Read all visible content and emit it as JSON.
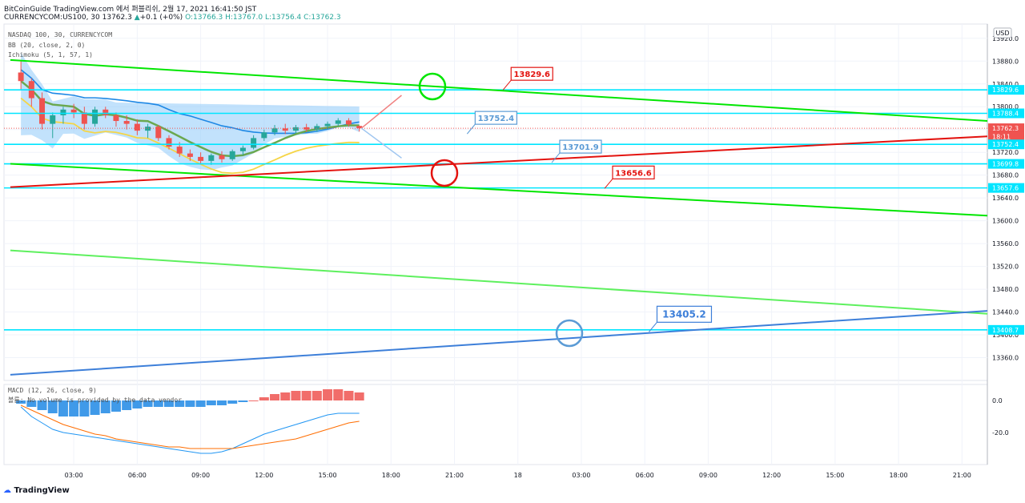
{
  "header": {
    "title_line": "BitCoinGuide TradingView.com 에서 퍼블리쉬, 2월 17, 2021 16:41:50 JST",
    "symbol": "CURRENCYCOM:US100, 30",
    "last": "13762.3",
    "change": "+0.1 (+0%)",
    "ohlc": "O:13766.3 H:13767.0 L:13756.4 C:13762.3"
  },
  "indicators": {
    "main": "NASDAQ 100, 30, CURRENCYCOM",
    "bb": "BB (20, close, 2, 0)",
    "ichimoku": "Ichimoku (5, 1, 57, 1)",
    "macd": "MACD (12, 26, close, 9)",
    "volume_note": "볼륨: No volume is provided by the data vendor"
  },
  "branding": {
    "logo": "TradingView"
  },
  "colors": {
    "up": "#26a69a",
    "down": "#ef5350",
    "bb_fill": "#90caf9",
    "bb_line": "#1e88e5",
    "green_line": "#00e600",
    "red_line": "#e3130f",
    "blue_line": "#3d7fd9",
    "level_line": "#00e5ff",
    "yellow": "#f5d547",
    "sma": "#6aa84f"
  },
  "chart_data": {
    "type": "candlestick",
    "currency": "USD",
    "price_axis": {
      "range": [
        13320,
        13945
      ],
      "ticks": [
        13360,
        13400,
        13440,
        13480,
        13520,
        13560,
        13600,
        13640,
        13680,
        13720,
        13760,
        13800,
        13840,
        13880,
        13920
      ],
      "tick_labels": [
        "13360.0",
        "13400.0",
        "13440.0",
        "13480.0",
        "13520.0",
        "13560.0",
        "13600.0",
        "13640.0",
        "13680.0",
        "13720.0",
        "13760.0",
        "13800.0",
        "13840.0",
        "13880.0",
        "13920.0"
      ],
      "level_labels": [
        {
          "label": "13829.6",
          "value": 13829.6,
          "color": "#00e5ff"
        },
        {
          "label": "13788.4",
          "value": 13788.4,
          "color": "#00e5ff"
        },
        {
          "label": "13762.3",
          "value": 13762.3,
          "color": "#ef5350"
        },
        {
          "label": "18:11",
          "value": 13747.5,
          "color": "#ef5350"
        },
        {
          "label": "13752.4",
          "value": 13734,
          "color": "#00e5ff"
        },
        {
          "label": "13699.8",
          "value": 13699.8,
          "color": "#00e5ff"
        },
        {
          "label": "13657.6",
          "value": 13657.6,
          "color": "#00e5ff"
        },
        {
          "label": "13408.7",
          "value": 13408.7,
          "color": "#00e5ff"
        }
      ]
    },
    "time_axis": {
      "labels": [
        "03:00",
        "06:00",
        "09:00",
        "12:00",
        "15:00",
        "18:00",
        "21:00",
        "18",
        "03:00",
        "06:00",
        "09:00",
        "12:00",
        "15:00",
        "18:00",
        "21:00"
      ],
      "hours": [
        3,
        6,
        9,
        12,
        15,
        18,
        21,
        24,
        27,
        30,
        33,
        36,
        39,
        42,
        45
      ]
    },
    "candles": [
      {
        "t": 0.5,
        "o": 13860,
        "h": 13880,
        "l": 13830,
        "c": 13845
      },
      {
        "t": 1.0,
        "o": 13845,
        "h": 13850,
        "l": 13800,
        "c": 13815
      },
      {
        "t": 1.5,
        "o": 13815,
        "h": 13825,
        "l": 13760,
        "c": 13770
      },
      {
        "t": 2.0,
        "o": 13770,
        "h": 13790,
        "l": 13745,
        "c": 13785
      },
      {
        "t": 2.5,
        "o": 13785,
        "h": 13800,
        "l": 13770,
        "c": 13795
      },
      {
        "t": 3.0,
        "o": 13795,
        "h": 13805,
        "l": 13780,
        "c": 13790
      },
      {
        "t": 3.5,
        "o": 13790,
        "h": 13800,
        "l": 13760,
        "c": 13770
      },
      {
        "t": 4.0,
        "o": 13770,
        "h": 13800,
        "l": 13765,
        "c": 13795
      },
      {
        "t": 4.5,
        "o": 13795,
        "h": 13800,
        "l": 13780,
        "c": 13785
      },
      {
        "t": 5.0,
        "o": 13785,
        "h": 13790,
        "l": 13765,
        "c": 13775
      },
      {
        "t": 5.5,
        "o": 13775,
        "h": 13785,
        "l": 13760,
        "c": 13770
      },
      {
        "t": 6.0,
        "o": 13770,
        "h": 13778,
        "l": 13750,
        "c": 13758
      },
      {
        "t": 6.5,
        "o": 13758,
        "h": 13770,
        "l": 13745,
        "c": 13765
      },
      {
        "t": 7.0,
        "o": 13765,
        "h": 13768,
        "l": 13740,
        "c": 13745
      },
      {
        "t": 7.5,
        "o": 13745,
        "h": 13750,
        "l": 13725,
        "c": 13730
      },
      {
        "t": 8.0,
        "o": 13730,
        "h": 13738,
        "l": 13712,
        "c": 13718
      },
      {
        "t": 8.5,
        "o": 13718,
        "h": 13725,
        "l": 13705,
        "c": 13712
      },
      {
        "t": 9.0,
        "o": 13712,
        "h": 13720,
        "l": 13700,
        "c": 13705
      },
      {
        "t": 9.5,
        "o": 13705,
        "h": 13718,
        "l": 13698,
        "c": 13715
      },
      {
        "t": 10.0,
        "o": 13715,
        "h": 13722,
        "l": 13702,
        "c": 13708
      },
      {
        "t": 10.5,
        "o": 13708,
        "h": 13725,
        "l": 13705,
        "c": 13722
      },
      {
        "t": 11.0,
        "o": 13722,
        "h": 13732,
        "l": 13715,
        "c": 13728
      },
      {
        "t": 11.5,
        "o": 13728,
        "h": 13750,
        "l": 13725,
        "c": 13745
      },
      {
        "t": 12.0,
        "o": 13745,
        "h": 13760,
        "l": 13740,
        "c": 13755
      },
      {
        "t": 12.5,
        "o": 13755,
        "h": 13768,
        "l": 13750,
        "c": 13762
      },
      {
        "t": 13.0,
        "o": 13762,
        "h": 13770,
        "l": 13752,
        "c": 13758
      },
      {
        "t": 13.5,
        "o": 13758,
        "h": 13768,
        "l": 13754,
        "c": 13764
      },
      {
        "t": 14.0,
        "o": 13764,
        "h": 13770,
        "l": 13756,
        "c": 13760
      },
      {
        "t": 14.5,
        "o": 13760,
        "h": 13770,
        "l": 13756,
        "c": 13766
      },
      {
        "t": 15.0,
        "o": 13766,
        "h": 13774,
        "l": 13760,
        "c": 13770
      },
      {
        "t": 15.5,
        "o": 13770,
        "h": 13780,
        "l": 13766,
        "c": 13776
      },
      {
        "t": 16.0,
        "o": 13776,
        "h": 13780,
        "l": 13765,
        "c": 13769
      },
      {
        "t": 16.5,
        "o": 13766.3,
        "h": 13767.0,
        "l": 13756.4,
        "c": 13762.3
      }
    ],
    "trend_lines": [
      {
        "name": "green-upper",
        "color": "#00e600",
        "p1": [
          0,
          13882
        ],
        "p2": [
          46.2,
          13775
        ]
      },
      {
        "name": "green-lower",
        "color": "#00e600",
        "p1": [
          0,
          13700
        ],
        "p2": [
          46.2,
          13609
        ]
      },
      {
        "name": "green-faint",
        "color": "#5ef05e",
        "p1": [
          0,
          13548
        ],
        "p2": [
          46.2,
          13437
        ]
      },
      {
        "name": "red",
        "color": "#e3130f",
        "p1": [
          0,
          13659
        ],
        "p2": [
          46.2,
          13748
        ]
      },
      {
        "name": "blue",
        "color": "#3d7fd9",
        "p1": [
          0,
          13330
        ],
        "p2": [
          46.2,
          13442
        ]
      }
    ],
    "callouts": [
      {
        "label": "13829.6",
        "color": "#e3130f",
        "t": 23.3,
        "price": 13829.6
      },
      {
        "label": "13752.4",
        "color": "#5b9bd5",
        "t": 21.6,
        "price": 13752.4
      },
      {
        "label": "13701.9",
        "color": "#5b9bd5",
        "t": 25.6,
        "price": 13701.9
      },
      {
        "label": "13656.6",
        "color": "#e3130f",
        "t": 28.1,
        "price": 13656.6
      },
      {
        "label": "13405.2",
        "color": "#3d7fd9",
        "t": 30.2,
        "price": 13405.2
      }
    ],
    "macd_panel": {
      "ticks": [
        0,
        -20
      ],
      "tick_labels": [
        "0.0",
        "-20.0"
      ],
      "range": [
        -40,
        10
      ],
      "histogram": [
        -2,
        -4,
        -6,
        -8,
        -10,
        -10,
        -10,
        -9,
        -8,
        -7,
        -6,
        -5,
        -4,
        -4,
        -4,
        -4,
        -4,
        -4,
        -3,
        -3,
        -2,
        -1,
        0,
        2,
        4,
        5,
        6,
        6,
        6,
        7,
        7,
        6,
        5
      ],
      "macd": [
        -4,
        -10,
        -14,
        -18,
        -20,
        -21,
        -22,
        -23,
        -24,
        -25,
        -26,
        -27,
        -28,
        -29,
        -30,
        -31,
        -32,
        -33,
        -33,
        -32,
        -30,
        -27,
        -24,
        -21,
        -19,
        -17,
        -15,
        -13,
        -11,
        -9,
        -8,
        -8,
        -8
      ],
      "signal": [
        -3,
        -6,
        -9,
        -12,
        -15,
        -17,
        -19,
        -21,
        -22,
        -24,
        -25,
        -26,
        -27,
        -28,
        -29,
        -29,
        -30,
        -30,
        -30,
        -30,
        -30,
        -29,
        -28,
        -27,
        -26,
        -25,
        -24,
        -22,
        -20,
        -18,
        -16,
        -14,
        -13
      ]
    }
  }
}
